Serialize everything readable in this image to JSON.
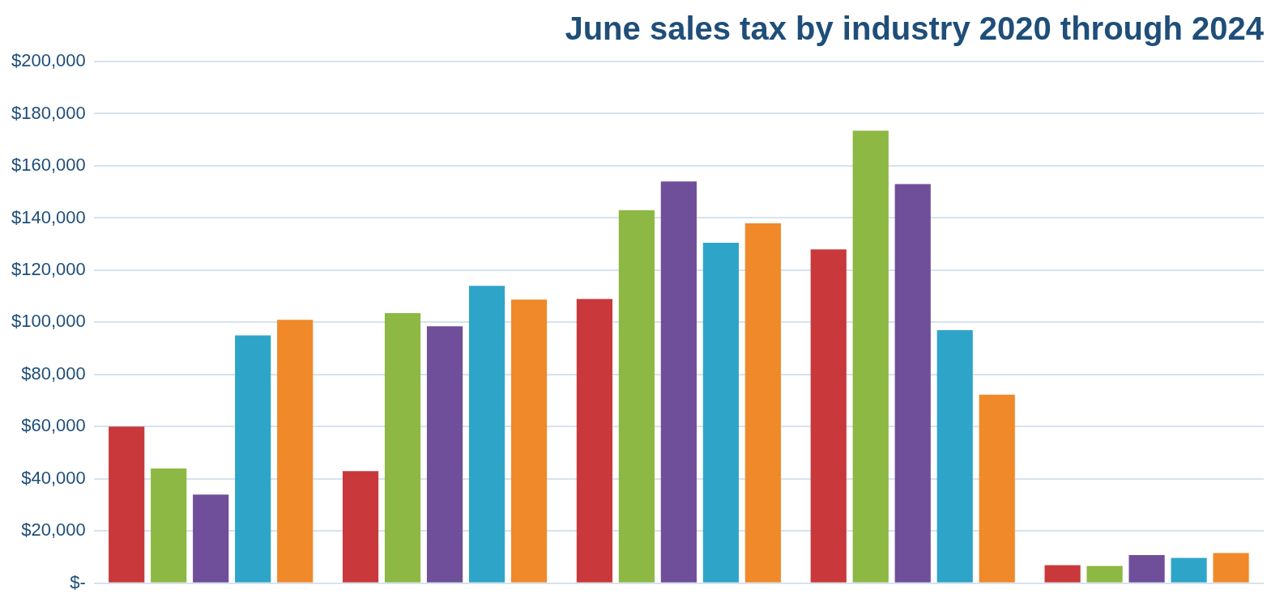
{
  "chart_data": {
    "type": "bar",
    "title": "June sales tax by industry 2020 through 2024",
    "categories": [
      null,
      null,
      null,
      null,
      null
    ],
    "series": [
      {
        "color": "#c9383a",
        "values": [
          60000,
          43000,
          109000,
          128000,
          6900
        ]
      },
      {
        "color": "#8db843",
        "values": [
          44000,
          103500,
          143000,
          173500,
          6600
        ]
      },
      {
        "color": "#6f4e9a",
        "values": [
          34000,
          98500,
          154000,
          153000,
          10800
        ]
      },
      {
        "color": "#2ea5c8",
        "values": [
          95000,
          114000,
          130500,
          97000,
          9700
        ]
      },
      {
        "color": "#f0892a",
        "values": [
          101000,
          108700,
          138000,
          72300,
          11600
        ]
      }
    ],
    "ylim": [
      0,
      200000
    ],
    "yticks": [
      {
        "value": 0,
        "label": "$-"
      },
      {
        "value": 20000,
        "label": "$20,000"
      },
      {
        "value": 40000,
        "label": "$40,000"
      },
      {
        "value": 60000,
        "label": "$60,000"
      },
      {
        "value": 80000,
        "label": "$80,000"
      },
      {
        "value": 100000,
        "label": "$100,000"
      },
      {
        "value": 120000,
        "label": "$120,000"
      },
      {
        "value": 140000,
        "label": "$140,000"
      },
      {
        "value": 160000,
        "label": "$160,000"
      },
      {
        "value": 180000,
        "label": "$180,000"
      },
      {
        "value": 200000,
        "label": "$200,000"
      }
    ],
    "grid": "y"
  }
}
